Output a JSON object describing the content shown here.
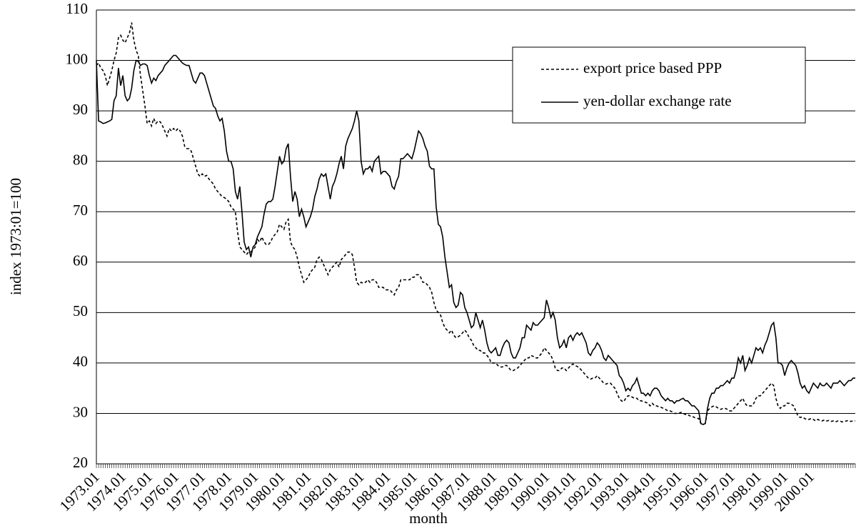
{
  "chart_data": {
    "type": "line",
    "xlabel": "month",
    "ylabel": "index 1973:01=100",
    "ylim": [
      20,
      110
    ],
    "yticks": [
      20,
      30,
      40,
      50,
      60,
      70,
      80,
      90,
      100,
      110
    ],
    "grid": true,
    "legend": "upper right",
    "categories": [
      "1973.01",
      null,
      null,
      null,
      null,
      null,
      null,
      null,
      null,
      null,
      null,
      null,
      "1974.01",
      null,
      null,
      null,
      null,
      null,
      null,
      null,
      null,
      null,
      null,
      null,
      "1975.01",
      null,
      null,
      null,
      null,
      null,
      null,
      null,
      null,
      null,
      null,
      null,
      "1976.01",
      null,
      null,
      null,
      null,
      null,
      null,
      null,
      null,
      null,
      null,
      null,
      "1977.01",
      null,
      null,
      null,
      null,
      null,
      null,
      null,
      null,
      null,
      null,
      null,
      "1978.01",
      null,
      null,
      null,
      null,
      null,
      null,
      null,
      null,
      null,
      null,
      null,
      "1979.01",
      null,
      null,
      null,
      null,
      null,
      null,
      null,
      null,
      null,
      null,
      null,
      "1980.01",
      null,
      null,
      null,
      null,
      null,
      null,
      null,
      null,
      null,
      null,
      null,
      "1981.01",
      null,
      null,
      null,
      null,
      null,
      null,
      null,
      null,
      null,
      null,
      null,
      "1982.01",
      null,
      null,
      null,
      null,
      null,
      null,
      null,
      null,
      null,
      null,
      null,
      "1983.01",
      null,
      null,
      null,
      null,
      null,
      null,
      null,
      null,
      null,
      null,
      null,
      "1984.01",
      null,
      null,
      null,
      null,
      null,
      null,
      null,
      null,
      null,
      null,
      null,
      "1985.01",
      null,
      null,
      null,
      null,
      null,
      null,
      null,
      null,
      null,
      null,
      null,
      "1986.01",
      null,
      null,
      null,
      null,
      null,
      null,
      null,
      null,
      null,
      null,
      null,
      "1987.01",
      null,
      null,
      null,
      null,
      null,
      null,
      null,
      null,
      null,
      null,
      null,
      "1988.01",
      null,
      null,
      null,
      null,
      null,
      null,
      null,
      null,
      null,
      null,
      null,
      "1989.01",
      null,
      null,
      null,
      null,
      null,
      null,
      null,
      null,
      null,
      null,
      null,
      "1990.01",
      null,
      null,
      null,
      null,
      null,
      null,
      null,
      null,
      null,
      null,
      null,
      "1991.01",
      null,
      null,
      null,
      null,
      null,
      null,
      null,
      null,
      null,
      null,
      null,
      "1992.01",
      null,
      null,
      null,
      null,
      null,
      null,
      null,
      null,
      null,
      null,
      null,
      "1993.01",
      null,
      null,
      null,
      null,
      null,
      null,
      null,
      null,
      null,
      null,
      null,
      "1994.01",
      null,
      null,
      null,
      null,
      null,
      null,
      null,
      null,
      null,
      null,
      null,
      "1995.01",
      null,
      null,
      null,
      null,
      null,
      null,
      null,
      null,
      null,
      null,
      null,
      "1996.01",
      null,
      null,
      null,
      null,
      null,
      null,
      null,
      null,
      null,
      null,
      null,
      "1997.01",
      null,
      null,
      null,
      null,
      null,
      null,
      null,
      null,
      null,
      null,
      null,
      "1998.01",
      null,
      null,
      null,
      null,
      null,
      null,
      null,
      null,
      null,
      null,
      null,
      "1999.01",
      null,
      null,
      null,
      null,
      null,
      null,
      null,
      null,
      null,
      null,
      null,
      "2000.01",
      null,
      null,
      null,
      null,
      null,
      null,
      null,
      null,
      null,
      null,
      null,
      null,
      null,
      null,
      null,
      null,
      null,
      null,
      null,
      null
    ],
    "series": [
      {
        "name": "export price based PPP",
        "color": "#000000",
        "style": "dashed",
        "values": [
          99,
          99.5,
          98.5,
          98,
          97,
          95,
          96.5,
          98,
          100,
          101.5,
          104.5,
          105,
          104,
          103.5,
          104.5,
          105.5,
          107.5,
          104,
          102,
          101,
          97,
          94,
          91,
          87.5,
          88,
          87,
          88.5,
          87.5,
          88,
          87.8,
          87,
          86,
          85,
          86.5,
          86,
          86.5,
          86,
          86.5,
          86,
          85,
          83,
          82.5,
          82.5,
          82,
          80.5,
          79,
          77.5,
          77,
          77.5,
          77,
          77.2,
          76.5,
          76,
          75.5,
          74.5,
          74,
          73.5,
          73,
          72.8,
          72.5,
          72,
          71,
          70.5,
          70,
          66,
          63,
          62.5,
          62,
          61.5,
          62,
          62,
          62.5,
          63,
          64.5,
          64,
          65,
          64,
          63.5,
          63.5,
          64,
          65,
          65.5,
          66,
          67.5,
          67,
          66.5,
          68,
          68.5,
          64,
          63,
          62.5,
          61,
          59,
          57.5,
          56,
          56.5,
          57,
          58,
          58.5,
          59,
          60.5,
          61,
          60.5,
          59.5,
          58.5,
          57.5,
          58.5,
          59,
          59.5,
          60,
          59,
          60.5,
          61,
          61.5,
          62,
          62,
          61.5,
          59,
          56,
          55.5,
          56,
          55.8,
          56,
          56.5,
          56,
          56.5,
          56.5,
          56,
          55,
          55,
          55,
          54.5,
          54.5,
          54.5,
          54,
          53.5,
          54.5,
          55,
          56.5,
          56.5,
          56.5,
          56.5,
          56.5,
          57,
          57,
          57.5,
          57.5,
          57,
          56,
          56,
          55.5,
          55,
          54,
          52,
          50.5,
          50,
          49.5,
          48,
          47,
          46.5,
          46,
          46.5,
          45.5,
          45,
          45.2,
          45.5,
          46,
          46.5,
          46,
          45,
          44.5,
          43.5,
          43,
          42.5,
          42.5,
          42,
          42,
          41.5,
          41,
          40,
          40,
          40,
          39.5,
          39.2,
          39.2,
          39.5,
          39.5,
          39,
          38.5,
          38.5,
          38.8,
          39,
          39.5,
          40,
          40.5,
          41,
          41,
          41.5,
          41.3,
          41,
          41,
          41.5,
          42,
          43,
          42.5,
          42,
          41.5,
          40.5,
          39,
          38.5,
          38.5,
          39,
          39,
          38.5,
          39,
          39.5,
          39.8,
          39.5,
          39.3,
          39,
          38.5,
          38,
          37.5,
          37,
          36.8,
          37,
          37,
          37.5,
          37,
          36.5,
          36,
          35.8,
          36,
          36,
          35.5,
          35,
          34,
          33,
          32.5,
          32.3,
          33,
          33.5,
          33.5,
          33.2,
          33,
          33,
          32.5,
          32.5,
          32.3,
          32.2,
          32,
          31.5,
          32,
          31.5,
          31.5,
          31.3,
          31.2,
          31,
          30.8,
          30.5,
          30.5,
          30.3,
          30,
          30,
          30,
          30.2,
          30,
          29.8,
          29.8,
          29.5,
          29.5,
          29.2,
          29,
          29,
          28,
          27.8,
          28,
          30.5,
          31,
          31.3,
          31.5,
          31.3,
          31,
          30.8,
          31,
          31,
          30.8,
          30.5,
          30.5,
          31,
          31.5,
          32,
          32.5,
          33,
          32,
          31.5,
          31.5,
          31.5,
          32,
          33,
          33.5,
          33.5,
          34,
          34.5,
          35,
          35.5,
          36,
          35.5,
          33,
          31.5,
          31,
          31.5,
          31.5,
          32,
          32,
          31.8,
          31.5,
          30.5,
          29.5,
          29.2,
          29.3,
          29,
          28.8,
          28.8,
          29,
          28.8,
          28.5,
          28.8,
          28.6,
          28.5,
          28.7,
          28.5,
          28.6,
          28.4,
          28.5,
          28.3,
          28.5,
          28.5,
          28.3,
          28.4,
          28.5,
          28.6,
          28.4,
          28.5,
          28.5
        ]
      },
      {
        "name": "yen-dollar exchange rate",
        "color": "#000000",
        "style": "solid",
        "values": [
          100,
          88,
          87.8,
          87.5,
          87.6,
          87.8,
          88,
          88.3,
          92,
          93,
          98.5,
          95,
          97,
          93,
          92,
          92.5,
          94.5,
          98,
          100,
          99.8,
          99,
          99.3,
          99.3,
          99,
          97,
          95.5,
          96.5,
          96,
          97,
          97.5,
          98,
          99,
          99.5,
          100,
          100.5,
          101,
          101,
          100.5,
          100,
          99.5,
          99.2,
          99,
          99,
          97.5,
          96,
          95.5,
          96.5,
          97.5,
          97.5,
          97,
          95.5,
          94,
          92.5,
          91,
          90.5,
          89,
          88,
          88.5,
          86,
          82,
          80,
          80,
          78.5,
          74,
          72.5,
          75,
          70,
          64,
          62.5,
          63,
          61,
          63,
          63.5,
          65,
          66,
          67,
          69.5,
          71.5,
          72,
          72,
          72.5,
          75,
          78,
          81,
          79.5,
          80,
          82.5,
          83.5,
          77,
          72,
          74,
          72.5,
          69,
          70.5,
          69,
          67,
          68,
          69,
          70.5,
          73,
          74.5,
          76.5,
          77.5,
          77,
          77.5,
          75,
          72.5,
          75,
          76,
          77.5,
          79.5,
          81,
          78.5,
          83,
          84.5,
          85.5,
          86.5,
          88,
          90,
          88,
          80,
          77.5,
          78.5,
          78.5,
          79,
          78,
          80,
          80.5,
          81,
          77.5,
          78,
          78,
          77.5,
          77,
          75,
          74.5,
          76,
          77,
          80.5,
          80.5,
          81,
          81.5,
          81,
          80.5,
          82,
          84,
          86,
          85.5,
          84.5,
          83,
          82,
          79,
          78.5,
          78.5,
          71,
          67.5,
          67,
          65,
          61,
          58,
          55,
          55.5,
          52,
          51,
          51.5,
          54,
          53.5,
          51,
          50,
          48.5,
          47,
          47.5,
          50,
          48.5,
          47,
          48.5,
          46.5,
          44,
          42.5,
          42,
          42.5,
          43,
          41.5,
          41.5,
          43,
          44,
          44.5,
          44,
          42,
          41,
          41,
          42,
          43,
          45,
          45,
          47.5,
          47,
          46.5,
          48,
          47.5,
          47.5,
          48,
          48.5,
          49,
          52.5,
          51,
          49,
          50,
          48.5,
          45,
          43,
          43.5,
          44.5,
          43,
          45,
          45.5,
          44.5,
          45.5,
          46,
          45.5,
          46,
          45,
          44,
          42,
          41.5,
          42.5,
          43,
          44,
          43.5,
          42.5,
          41,
          40.5,
          41.5,
          41,
          40.5,
          40,
          39.5,
          37.5,
          37,
          36,
          34.5,
          35,
          34.5,
          35.5,
          36,
          37,
          35.5,
          34,
          34,
          33.5,
          34,
          33.5,
          34.5,
          35,
          35,
          34.5,
          33.5,
          33,
          32.5,
          33,
          32.5,
          32.5,
          32,
          32.5,
          32.5,
          32.8,
          33,
          32.5,
          32.5,
          32,
          31.5,
          31.5,
          31,
          30.5,
          28,
          27.8,
          28,
          31,
          33,
          34,
          34,
          35,
          35,
          35.5,
          35.5,
          36,
          36.5,
          36,
          37,
          37,
          38.5,
          41,
          40,
          41.5,
          38.5,
          39.5,
          41,
          40,
          41.5,
          43,
          42.5,
          43,
          42,
          43.5,
          44.5,
          46,
          47.5,
          48,
          45,
          40,
          40,
          39.5,
          37.5,
          39,
          40,
          40.5,
          40,
          39.5,
          38,
          36,
          35,
          35.5,
          34.5,
          34,
          35,
          36,
          35.5,
          35,
          36,
          35.5,
          35.5,
          36,
          35.5,
          35,
          36,
          36,
          36,
          36.5,
          36,
          35.5,
          36,
          36.5,
          36.5,
          37,
          37
        ]
      }
    ]
  }
}
